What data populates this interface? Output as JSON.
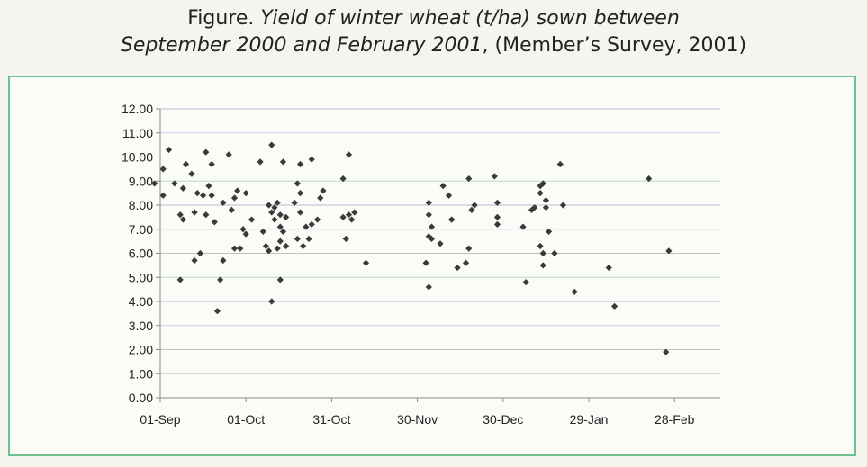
{
  "title": {
    "prefix": "Figure.",
    "italic": "Yield of winter wheat (t/ha) sown between",
    "line2_italic": "September 2000 and February 2001",
    "line2_rest": ", (Member’s Survey, 2001)"
  },
  "colors": {
    "frame": "#6fbf8f",
    "axis": "#8a8a8a",
    "marker": "#3a3a3a",
    "gridlines": [
      "#c9b3d6",
      "#b9d9c0",
      "#cdbfae",
      "#d7c6e6"
    ]
  },
  "chart_data": {
    "type": "scatter",
    "x_start_date": "01-Sep",
    "xlim_days": [
      0,
      196
    ],
    "x_tick_labels": [
      "01-Sep",
      "01-Oct",
      "31-Oct",
      "30-Nov",
      "30-Dec",
      "29-Jan",
      "28-Feb"
    ],
    "x_tick_days": [
      0,
      30,
      60,
      90,
      120,
      150,
      180
    ],
    "ylim": [
      0,
      12
    ],
    "y_tick_labels": [
      "0.00",
      "1.00",
      "2.00",
      "3.00",
      "4.00",
      "5.00",
      "6.00",
      "7.00",
      "8.00",
      "9.00",
      "10.00",
      "11.00",
      "12.00"
    ],
    "grid": true,
    "legend": "none",
    "points": [
      [
        -2,
        8.9
      ],
      [
        1,
        8.4
      ],
      [
        1,
        9.5
      ],
      [
        3,
        10.3
      ],
      [
        5,
        8.9
      ],
      [
        7,
        4.9
      ],
      [
        7,
        7.6
      ],
      [
        8,
        7.4
      ],
      [
        8,
        8.7
      ],
      [
        9,
        9.7
      ],
      [
        11,
        9.3
      ],
      [
        12,
        5.7
      ],
      [
        12,
        7.7
      ],
      [
        13,
        8.5
      ],
      [
        14,
        6.0
      ],
      [
        15,
        8.4
      ],
      [
        16,
        7.6
      ],
      [
        16,
        10.2
      ],
      [
        17,
        8.8
      ],
      [
        18,
        8.4
      ],
      [
        18,
        9.7
      ],
      [
        19,
        7.3
      ],
      [
        20,
        3.6
      ],
      [
        21,
        4.9
      ],
      [
        22,
        5.7
      ],
      [
        22,
        8.1
      ],
      [
        24,
        10.1
      ],
      [
        25,
        7.8
      ],
      [
        26,
        6.2
      ],
      [
        26,
        8.3
      ],
      [
        27,
        8.6
      ],
      [
        28,
        6.2
      ],
      [
        29,
        7.0
      ],
      [
        30,
        6.8
      ],
      [
        30,
        8.5
      ],
      [
        32,
        7.4
      ],
      [
        35,
        9.8
      ],
      [
        36,
        6.9
      ],
      [
        37,
        6.3
      ],
      [
        38,
        6.1
      ],
      [
        38,
        8.0
      ],
      [
        39,
        4.0
      ],
      [
        39,
        7.7
      ],
      [
        39,
        10.5
      ],
      [
        40,
        7.4
      ],
      [
        40,
        7.9
      ],
      [
        41,
        6.2
      ],
      [
        41,
        8.1
      ],
      [
        42,
        4.9
      ],
      [
        42,
        6.5
      ],
      [
        42,
        7.1
      ],
      [
        42,
        7.6
      ],
      [
        43,
        9.8
      ],
      [
        43,
        6.9
      ],
      [
        44,
        6.3
      ],
      [
        44,
        7.5
      ],
      [
        47,
        8.1
      ],
      [
        48,
        8.9
      ],
      [
        48,
        6.6
      ],
      [
        49,
        9.7
      ],
      [
        49,
        8.5
      ],
      [
        49,
        7.7
      ],
      [
        50,
        6.3
      ],
      [
        51,
        7.1
      ],
      [
        52,
        6.6
      ],
      [
        53,
        7.2
      ],
      [
        53,
        9.9
      ],
      [
        55,
        7.4
      ],
      [
        56,
        8.3
      ],
      [
        57,
        8.6
      ],
      [
        64,
        9.1
      ],
      [
        64,
        7.5
      ],
      [
        65,
        6.6
      ],
      [
        66,
        10.1
      ],
      [
        66,
        7.6
      ],
      [
        67,
        7.4
      ],
      [
        68,
        7.7
      ],
      [
        72,
        5.6
      ],
      [
        93,
        5.6
      ],
      [
        94,
        4.6
      ],
      [
        94,
        8.1
      ],
      [
        94,
        7.6
      ],
      [
        94,
        6.7
      ],
      [
        95,
        6.6
      ],
      [
        95,
        7.1
      ],
      [
        98,
        6.4
      ],
      [
        99,
        8.8
      ],
      [
        101,
        8.4
      ],
      [
        102,
        7.4
      ],
      [
        102,
        7.4
      ],
      [
        104,
        5.4
      ],
      [
        107,
        5.6
      ],
      [
        108,
        9.1
      ],
      [
        108,
        6.2
      ],
      [
        109,
        7.8
      ],
      [
        110,
        8.0
      ],
      [
        117,
        9.2
      ],
      [
        118,
        8.1
      ],
      [
        118,
        7.5
      ],
      [
        118,
        7.2
      ],
      [
        127,
        7.1
      ],
      [
        128,
        4.8
      ],
      [
        130,
        7.8
      ],
      [
        131,
        7.9
      ],
      [
        133,
        8.8
      ],
      [
        133,
        8.5
      ],
      [
        133,
        6.3
      ],
      [
        134,
        6.0
      ],
      [
        134,
        5.5
      ],
      [
        134,
        8.9
      ],
      [
        135,
        8.2
      ],
      [
        135,
        7.9
      ],
      [
        136,
        6.9
      ],
      [
        138,
        6.0
      ],
      [
        140,
        9.7
      ],
      [
        141,
        8.0
      ],
      [
        145,
        4.4
      ],
      [
        157,
        5.4
      ],
      [
        159,
        3.8
      ],
      [
        171,
        9.1
      ],
      [
        177,
        1.9
      ],
      [
        178,
        6.1
      ]
    ]
  }
}
